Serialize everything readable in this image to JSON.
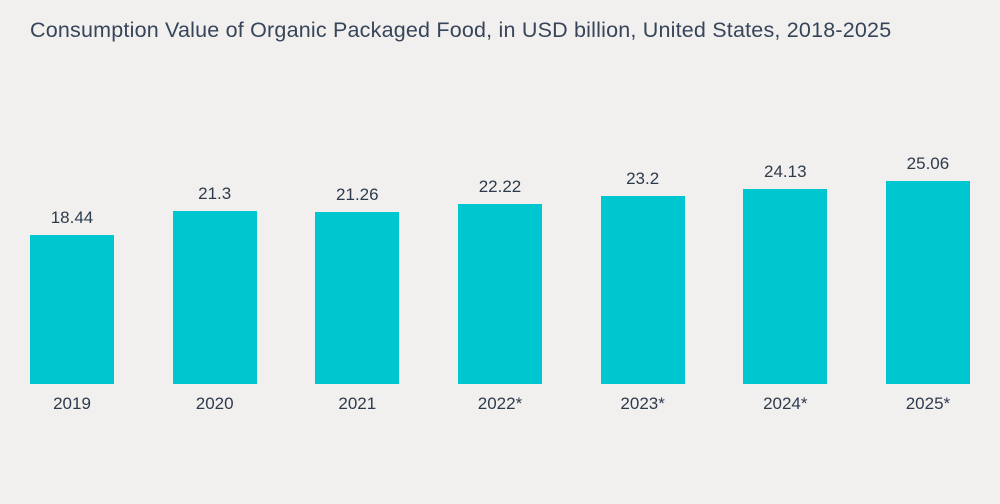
{
  "title": "Consumption Value of Organic Packaged Food, in USD billion, United States, 2018-2025",
  "chart_data": {
    "type": "bar",
    "title": "Consumption Value of Organic Packaged Food, in USD billion, United States, 2018-2025",
    "categories": [
      "2019",
      "2020",
      "2021",
      "2022*",
      "2023*",
      "2024*",
      "2025*"
    ],
    "values": [
      18.44,
      21.3,
      21.26,
      22.22,
      23.2,
      24.13,
      25.06
    ],
    "value_labels": [
      "18.44",
      "21.3",
      "21.26",
      "22.22",
      "23.2",
      "24.13",
      "25.06"
    ],
    "xlabel": "",
    "ylabel": "",
    "ylim": [
      0,
      26
    ],
    "grid": false,
    "legend": false,
    "bar_color": "#00C6CF",
    "background_color": "#F1F0EE",
    "text_color": "#2E3B4D"
  }
}
